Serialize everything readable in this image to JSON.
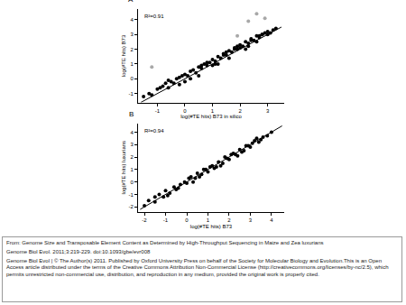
{
  "chart_data": [
    {
      "type": "scatter",
      "label": "A",
      "annotation": "R²=0.91",
      "xlabel": "log(#TE hits) B73 in silico",
      "ylabel": "log(#TE hits) B73",
      "xlim": [
        -1.7,
        3.6
      ],
      "ylim": [
        -1.6,
        4.7
      ],
      "xticks": [
        -1,
        0,
        1,
        2,
        3
      ],
      "yticks": [
        -1,
        0,
        1,
        2,
        3,
        4
      ],
      "grid": false,
      "series": [
        {
          "type": "scatter",
          "marker": "circle",
          "color": "#000000",
          "x": [
            -1.5,
            -1.3,
            -1.2,
            -1.0,
            -0.9,
            -0.8,
            -0.7,
            -0.6,
            -0.5,
            -0.4,
            -0.3,
            -0.2,
            -0.1,
            0.0,
            0.1,
            0.2,
            0.3,
            0.4,
            0.5,
            0.6,
            0.7,
            0.8,
            0.9,
            1.0,
            1.1,
            1.2,
            1.3,
            1.4,
            1.5,
            1.6,
            1.7,
            1.8,
            1.9,
            2.0,
            2.1,
            2.2,
            2.3,
            2.4,
            2.5,
            2.6,
            2.7,
            2.8,
            2.9,
            3.0,
            3.1,
            3.2,
            3.3,
            -0.6,
            -0.2,
            0.2,
            0.5,
            0.8,
            1.0,
            1.2,
            1.4,
            1.6,
            1.8,
            2.0,
            2.2,
            2.4,
            2.6,
            2.8,
            3.0,
            0.0,
            0.6,
            1.1,
            1.5,
            1.9,
            2.3,
            2.7
          ],
          "values": [
            -1.2,
            -1.0,
            -1.1,
            -0.7,
            -0.6,
            -0.5,
            -0.3,
            -0.6,
            -0.2,
            -0.3,
            0.0,
            0.1,
            0.2,
            0.3,
            0.2,
            0.5,
            0.6,
            0.4,
            0.8,
            0.7,
            1.0,
            0.9,
            1.1,
            1.3,
            1.2,
            1.5,
            1.4,
            1.7,
            1.6,
            1.9,
            1.8,
            2.1,
            2.0,
            2.3,
            2.2,
            2.5,
            2.4,
            2.7,
            2.6,
            2.9,
            2.8,
            3.0,
            3.1,
            3.2,
            3.1,
            3.3,
            3.4,
            -0.1,
            -0.4,
            0.0,
            0.2,
            1.1,
            0.9,
            1.0,
            1.6,
            1.4,
            2.0,
            2.1,
            2.0,
            2.6,
            2.5,
            3.0,
            3.0,
            -0.2,
            0.9,
            1.0,
            1.8,
            2.2,
            2.2,
            2.9
          ]
        },
        {
          "type": "scatter",
          "marker": "circle",
          "color": "#a8a8a8",
          "x": [
            -1.2,
            1.9,
            2.3,
            2.6,
            2.9
          ],
          "values": [
            0.8,
            2.9,
            3.9,
            4.4,
            4.1
          ]
        },
        {
          "type": "line",
          "line_style": "solid",
          "color": "#000000",
          "x": [
            -1.6,
            3.5
          ],
          "values": [
            -1.6,
            3.5
          ]
        }
      ]
    },
    {
      "type": "scatter",
      "label": "B",
      "annotation": "R²=0.94",
      "xlabel": "log(#TE hits) B73",
      "ylabel": "log(#TE hits) luxurians",
      "xlim": [
        -2.3,
        4.6
      ],
      "ylim": [
        -2.4,
        4.7
      ],
      "xticks": [
        -2,
        -1,
        0,
        1,
        2,
        3,
        4
      ],
      "yticks": [
        -2,
        -1,
        0,
        1,
        2,
        3,
        4
      ],
      "grid": false,
      "series": [
        {
          "type": "scatter",
          "marker": "circle",
          "color": "#000000",
          "x": [
            -2.0,
            -1.8,
            -1.5,
            -1.3,
            -1.1,
            -1.0,
            -0.8,
            -0.6,
            -0.5,
            -0.3,
            -0.1,
            0.0,
            0.2,
            0.4,
            0.5,
            0.7,
            0.9,
            1.0,
            1.2,
            1.4,
            1.5,
            1.7,
            1.9,
            2.0,
            2.2,
            2.4,
            2.5,
            2.7,
            2.9,
            3.0,
            3.2,
            3.4,
            3.6,
            3.8,
            4.0,
            -1.5,
            -0.9,
            -0.4,
            0.1,
            0.6,
            1.1,
            1.6,
            2.1,
            2.6,
            3.1,
            3.5,
            0.3,
            0.8,
            1.3,
            1.8,
            2.3,
            2.8,
            3.3
          ],
          "values": [
            -1.9,
            -1.5,
            -1.6,
            -1.0,
            -1.2,
            -0.7,
            -0.9,
            -0.4,
            -0.6,
            -0.2,
            0.0,
            -0.1,
            0.4,
            0.3,
            0.7,
            0.6,
            1.0,
            0.8,
            1.3,
            1.2,
            1.6,
            1.5,
            1.9,
            1.8,
            2.3,
            2.1,
            2.6,
            2.5,
            2.9,
            2.8,
            3.3,
            3.2,
            3.6,
            3.7,
            4.0,
            -1.2,
            -1.1,
            -0.5,
            0.3,
            0.4,
            1.2,
            1.3,
            2.2,
            2.4,
            3.1,
            3.4,
            0.0,
            1.0,
            1.1,
            2.0,
            2.2,
            2.9,
            3.5
          ]
        },
        {
          "type": "line",
          "line_style": "solid",
          "color": "#000000",
          "x": [
            -2.2,
            4.5
          ],
          "values": [
            -2.2,
            4.5
          ]
        }
      ]
    }
  ],
  "caption": {
    "source": "From: Genome Size and Transposable Element Content as Determined by High-Throughput Sequencing in Maize and Zea luxurians",
    "citation": "Genome Biol Evol. 2011;3:219-229. doi:10.1093/gbe/evr008",
    "license": "Genome Biol Evol | © The Author(s) 2011. Published by Oxford University Press on behalf of the Society for Molecular Biology and Evolution.This is an Open Access article distributed under the terms of the Creative Commons Attribution Non-Commercial License (http://creativecommons.org/licenses/by-nc/2.5), which permits unrestricted non-commercial use, distribution, and reproduction in any medium, provided the original work is properly cited."
  }
}
